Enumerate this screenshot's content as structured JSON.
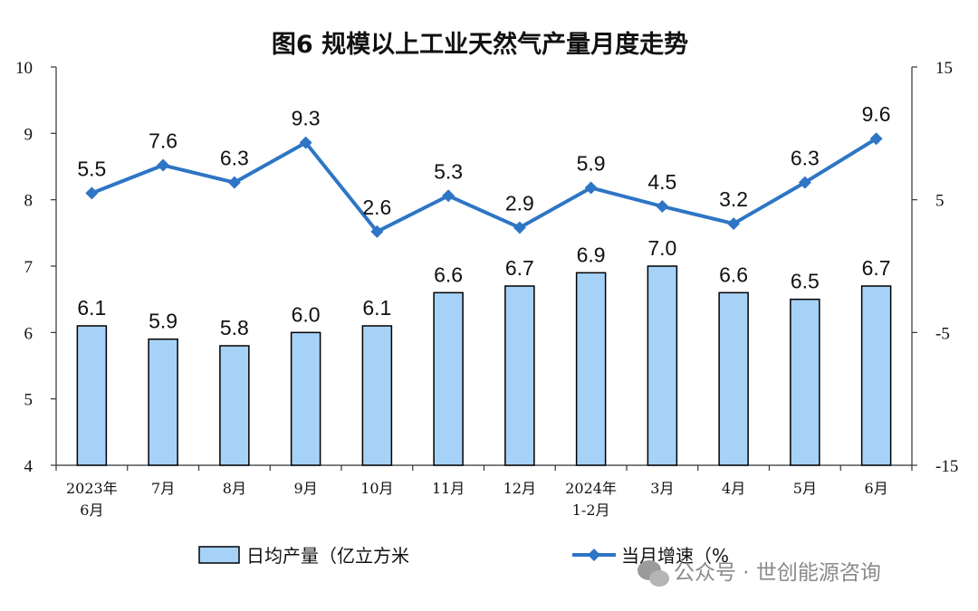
{
  "chart_data": {
    "type": "bar",
    "title": "图6  规模以上工业天然气产量月度走势",
    "categories": [
      [
        "2023年",
        "6月"
      ],
      [
        "7月"
      ],
      [
        "8月"
      ],
      [
        "9月"
      ],
      [
        "10月"
      ],
      [
        "11月"
      ],
      [
        "12月"
      ],
      [
        "2024年",
        "1-2月"
      ],
      [
        "3月"
      ],
      [
        "4月"
      ],
      [
        "5月"
      ],
      [
        "6月"
      ]
    ],
    "series": [
      {
        "name": "日均产量（亿立方米",
        "type": "bar",
        "axis": "left",
        "color": "#a6d2f7",
        "values": [
          6.1,
          5.9,
          5.8,
          6.0,
          6.1,
          6.6,
          6.7,
          6.9,
          7.0,
          6.6,
          6.5,
          6.7
        ],
        "labels": [
          "6.1",
          "5.9",
          "5.8",
          "6.0",
          "6.1",
          "6.6",
          "6.7",
          "6.9",
          "7.0",
          "6.6",
          "6.5",
          "6.7"
        ]
      },
      {
        "name": "当月增速（%",
        "type": "line",
        "axis": "right",
        "color": "#2e75c5",
        "values": [
          5.5,
          7.6,
          6.3,
          9.3,
          2.6,
          5.3,
          2.9,
          5.9,
          4.5,
          3.2,
          6.3,
          9.6
        ],
        "labels": [
          "5.5",
          "7.6",
          "6.3",
          "9.3",
          "2.6",
          "5.3",
          "2.9",
          "5.9",
          "4.5",
          "3.2",
          "6.3",
          "9.6"
        ]
      }
    ],
    "y_left": {
      "ylim": [
        4,
        10
      ],
      "ticks": [
        "4",
        "5",
        "6",
        "7",
        "8",
        "9",
        "10"
      ]
    },
    "y_right": {
      "ylim": [
        -15,
        15
      ],
      "ticks": [
        "-15",
        "-5",
        "5",
        "15"
      ]
    },
    "legend": "bottom",
    "grid": false
  },
  "watermark": "公众号 · 世创能源咨询"
}
